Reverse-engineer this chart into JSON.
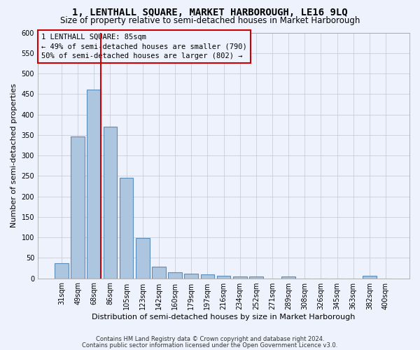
{
  "title": "1, LENTHALL SQUARE, MARKET HARBOROUGH, LE16 9LQ",
  "subtitle": "Size of property relative to semi-detached houses in Market Harborough",
  "xlabel": "Distribution of semi-detached houses by size in Market Harborough",
  "ylabel": "Number of semi-detached properties",
  "categories": [
    "31sqm",
    "49sqm",
    "68sqm",
    "86sqm",
    "105sqm",
    "123sqm",
    "142sqm",
    "160sqm",
    "179sqm",
    "197sqm",
    "216sqm",
    "234sqm",
    "252sqm",
    "271sqm",
    "289sqm",
    "308sqm",
    "326sqm",
    "345sqm",
    "363sqm",
    "382sqm",
    "400sqm"
  ],
  "values": [
    37,
    347,
    460,
    370,
    246,
    98,
    29,
    15,
    11,
    9,
    6,
    5,
    5,
    0,
    5,
    0,
    0,
    0,
    0,
    6,
    0
  ],
  "bar_color": "#adc6e0",
  "bar_edge_color": "#5b8db8",
  "annotation_line1": "1 LENTHALL SQUARE: 85sqm",
  "annotation_line2": "← 49% of semi-detached houses are smaller (790)",
  "annotation_line3": "50% of semi-detached houses are larger (802) →",
  "vline_x_index": 2,
  "vline_color": "#cc0000",
  "ylim": [
    0,
    600
  ],
  "yticks": [
    0,
    50,
    100,
    150,
    200,
    250,
    300,
    350,
    400,
    450,
    500,
    550,
    600
  ],
  "footnote1": "Contains HM Land Registry data © Crown copyright and database right 2024.",
  "footnote2": "Contains public sector information licensed under the Open Government Licence v3.0.",
  "bg_color": "#eef2fc",
  "grid_color": "#c8cdd8",
  "title_fontsize": 10,
  "subtitle_fontsize": 8.5,
  "axis_label_fontsize": 8,
  "tick_fontsize": 7,
  "annotation_fontsize": 7.5,
  "footnote_fontsize": 6
}
